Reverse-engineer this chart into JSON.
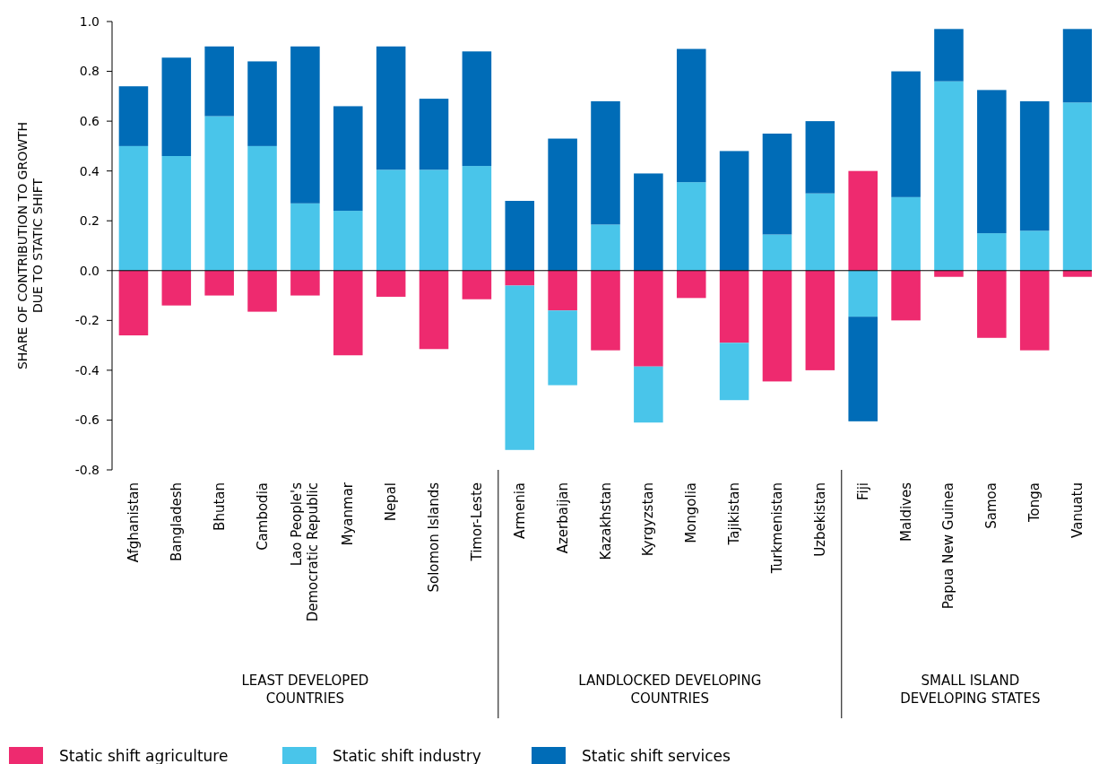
{
  "chart_data": {
    "type": "bar",
    "stacked": true,
    "ylabel": "SHARE OF CONTRIBUTION TO GROWTH\nDUE TO STATIC SHIFT",
    "categories": [
      "Afghanistan",
      "Bangladesh",
      "Bhutan",
      "Cambodia",
      "Lao People's\nDemocratic Republic",
      "Myanmar",
      "Nepal",
      "Solomon Islands",
      "Timor-Leste",
      "Armenia",
      "Azerbaijan",
      "Kazakhstan",
      "Kyrgyzstan",
      "Mongolia",
      "Tajikistan",
      "Turkmenistan",
      "Uzbekistan",
      "Fiji",
      "Maldives",
      "Papua New Guinea",
      "Samoa",
      "Tonga",
      "Vanuatu"
    ],
    "series": [
      {
        "name": "Static shift agriculture",
        "color": "#ee2a6f",
        "values": [
          -0.26,
          -0.14,
          -0.1,
          -0.165,
          -0.1,
          -0.34,
          -0.105,
          -0.315,
          -0.115,
          -0.06,
          -0.16,
          -0.32,
          -0.385,
          -0.11,
          -0.29,
          -0.445,
          -0.4,
          0.4,
          -0.2,
          -0.025,
          -0.27,
          -0.32,
          -0.025
        ]
      },
      {
        "name": "Static shift industry",
        "color": "#49c5ea",
        "values": [
          0.5,
          0.46,
          0.62,
          0.5,
          0.27,
          0.24,
          0.405,
          0.405,
          0.42,
          -0.66,
          -0.3,
          0.185,
          -0.225,
          0.355,
          -0.23,
          0.145,
          0.31,
          -0.185,
          0.295,
          0.76,
          0.15,
          0.16,
          0.675
        ]
      },
      {
        "name": "Static shift services",
        "color": "#006cb7",
        "values": [
          0.24,
          0.395,
          0.28,
          0.34,
          0.63,
          0.42,
          0.495,
          0.285,
          0.46,
          0.28,
          0.53,
          0.495,
          0.39,
          0.535,
          0.48,
          0.405,
          0.29,
          -0.42,
          0.505,
          0.21,
          0.575,
          0.52,
          0.295
        ]
      }
    ],
    "ylim": [
      -0.8,
      1.0
    ],
    "yticks": [
      {
        "value": -0.8,
        "label": "-0.8"
      },
      {
        "value": -0.6,
        "label": "-0.6"
      },
      {
        "value": -0.4,
        "label": "-0.4"
      },
      {
        "value": -0.2,
        "label": "-0.2"
      },
      {
        "value": 0,
        "label": "0.0"
      },
      {
        "value": 0.2,
        "label": "0.2"
      },
      {
        "value": 0.4,
        "label": "0.4"
      },
      {
        "value": 0.6,
        "label": "0.6"
      },
      {
        "value": 0.8,
        "label": "0.8"
      },
      {
        "value": 1,
        "label": "1.0"
      }
    ],
    "annotations": [
      "LEAST DEVELOPED\nCOUNTRIES",
      "LANDLOCKED DEVELOPING\nCOUNTRIES",
      "SMALL ISLAND\nDEVELOPING STATES"
    ],
    "legend": "bottom left"
  }
}
